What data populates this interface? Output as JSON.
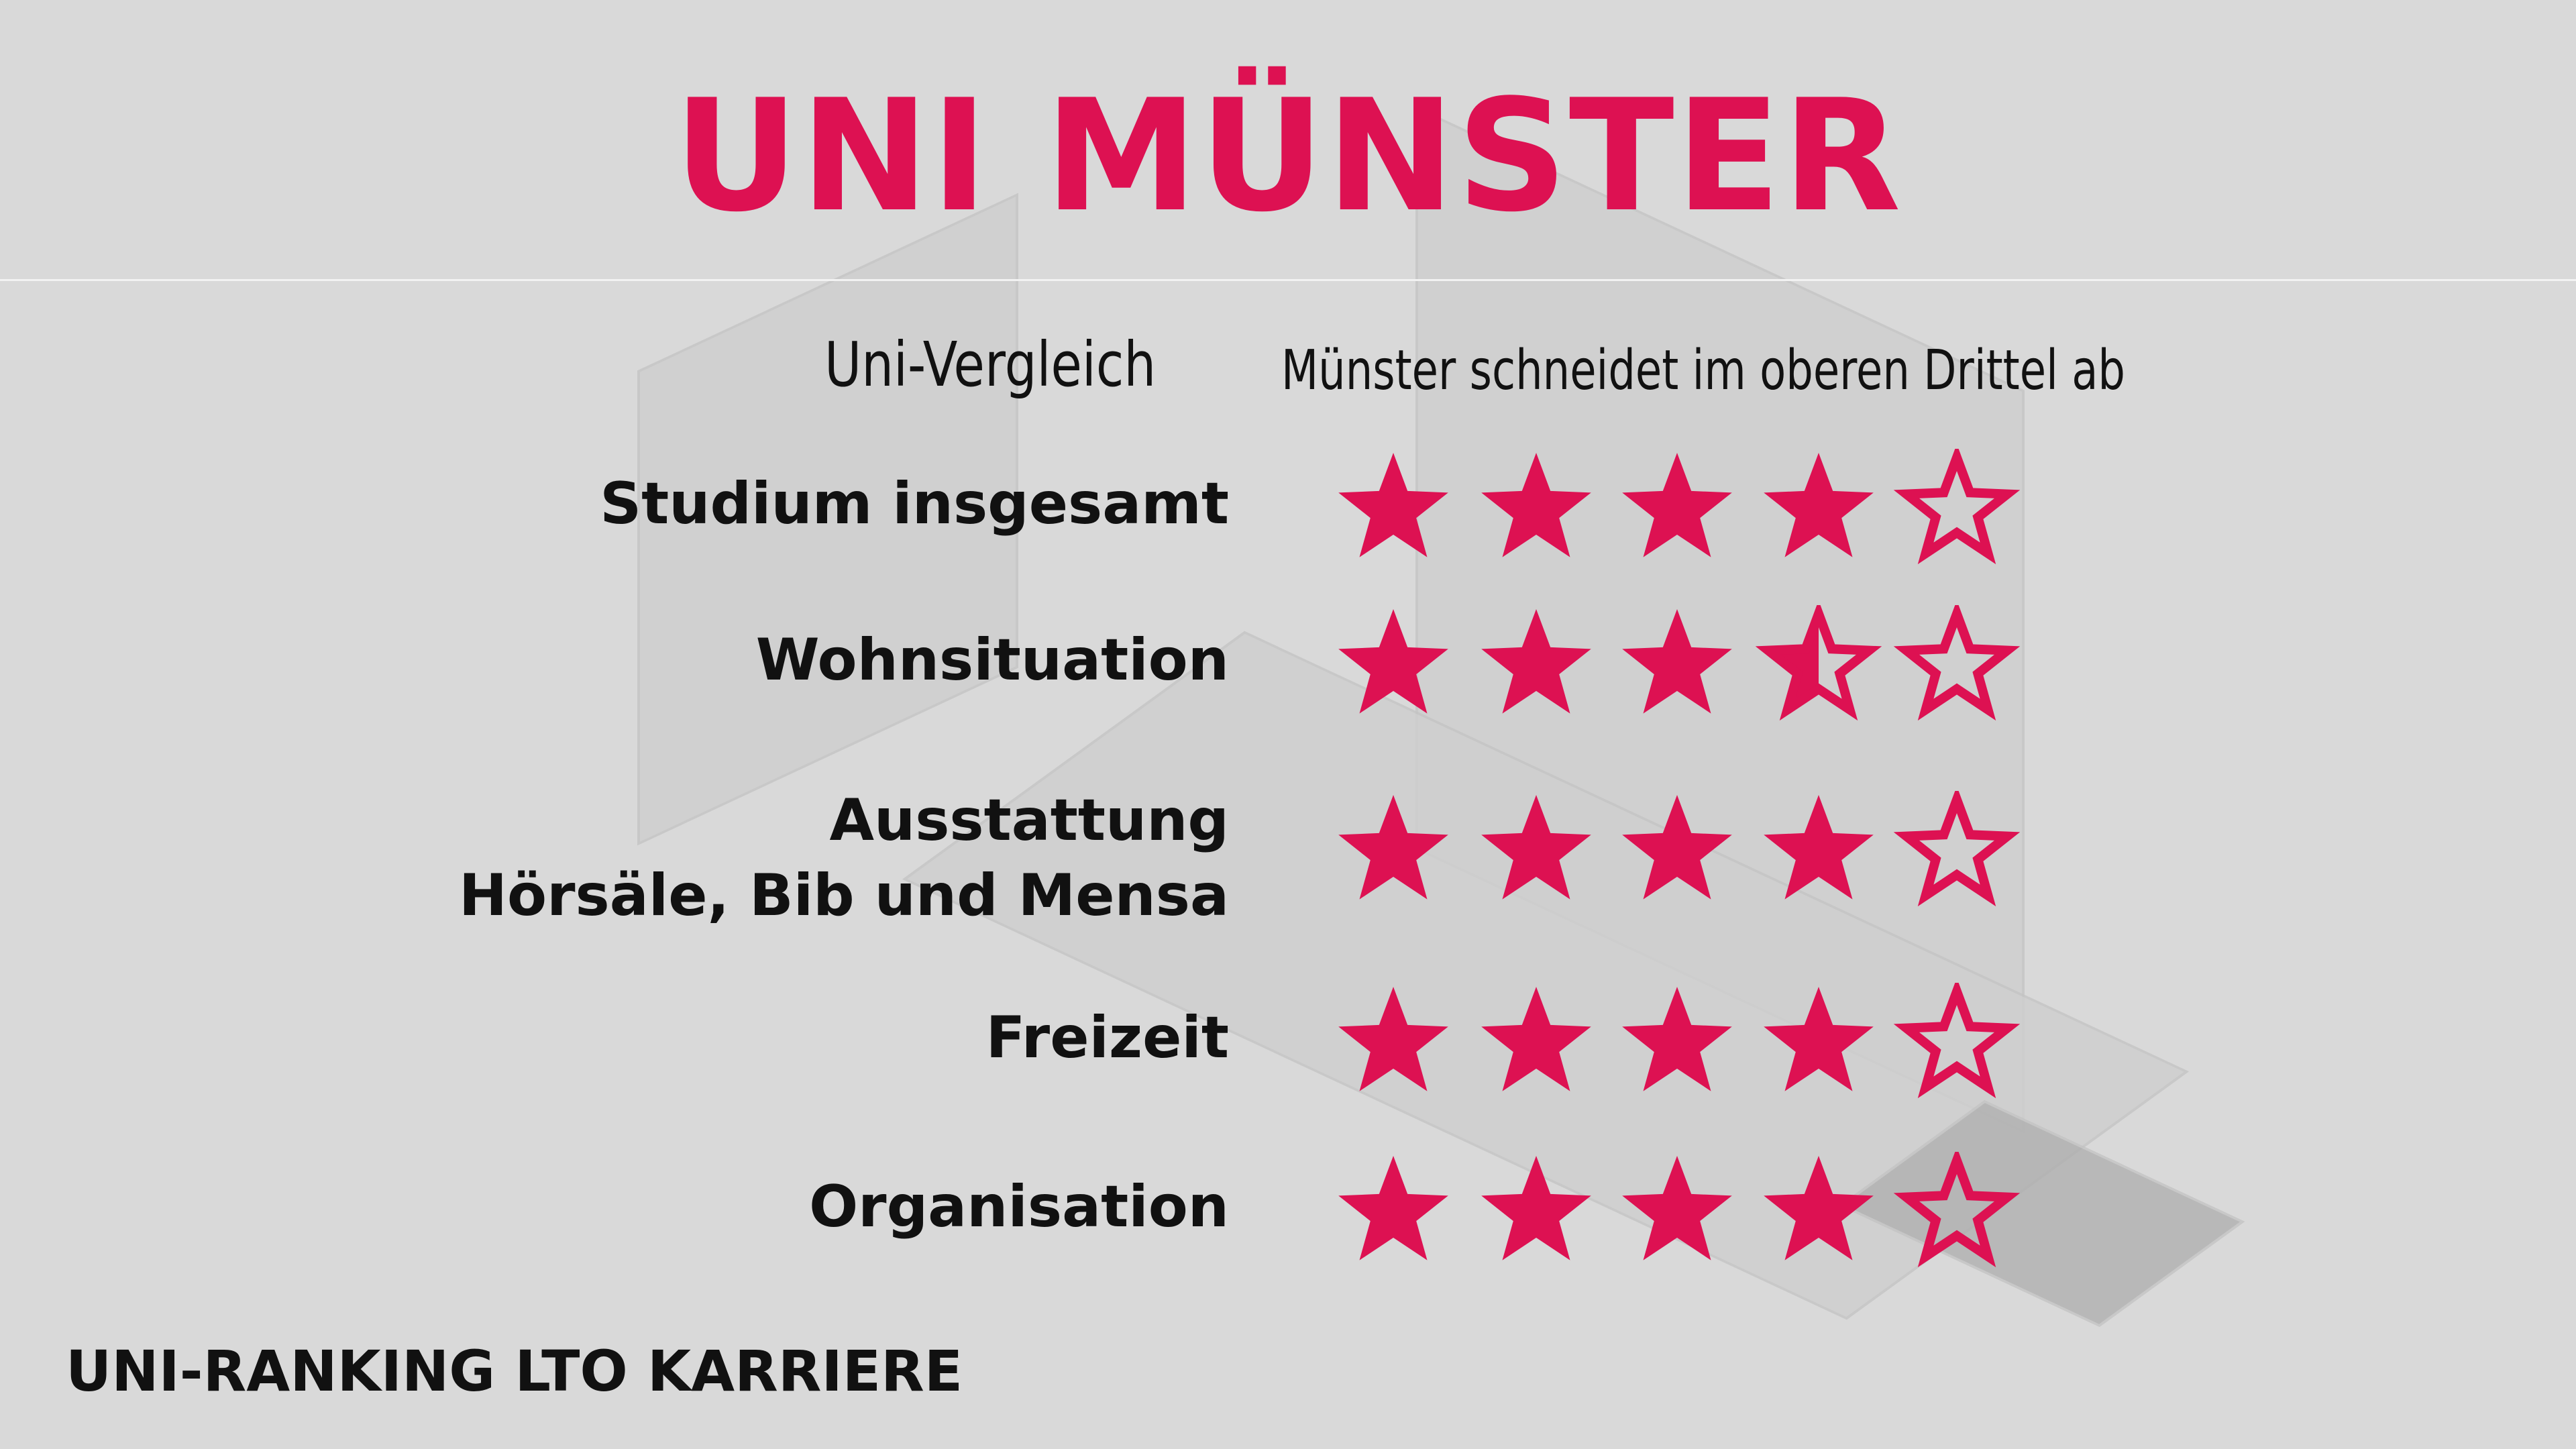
{
  "title": "UNI MÜNSTER",
  "intro_label": "Uni-Vergleich",
  "subtitle": "Münster schneidet im oberen Drittel ab",
  "max_stars": 5,
  "accent_color": "#dd1152",
  "categories": [
    {
      "label": "Studium insgesamt",
      "rating": 4
    },
    {
      "label": "Wohnsituation",
      "rating": 3.5
    },
    {
      "label": "Ausstattung",
      "label_line2": "Hörsäle, Bib und Mensa",
      "rating": 4
    },
    {
      "label": "Freizeit",
      "rating": 4
    },
    {
      "label": "Organisation",
      "rating": 4
    }
  ],
  "footer": "UNI-RANKING LTO KARRIERE"
}
